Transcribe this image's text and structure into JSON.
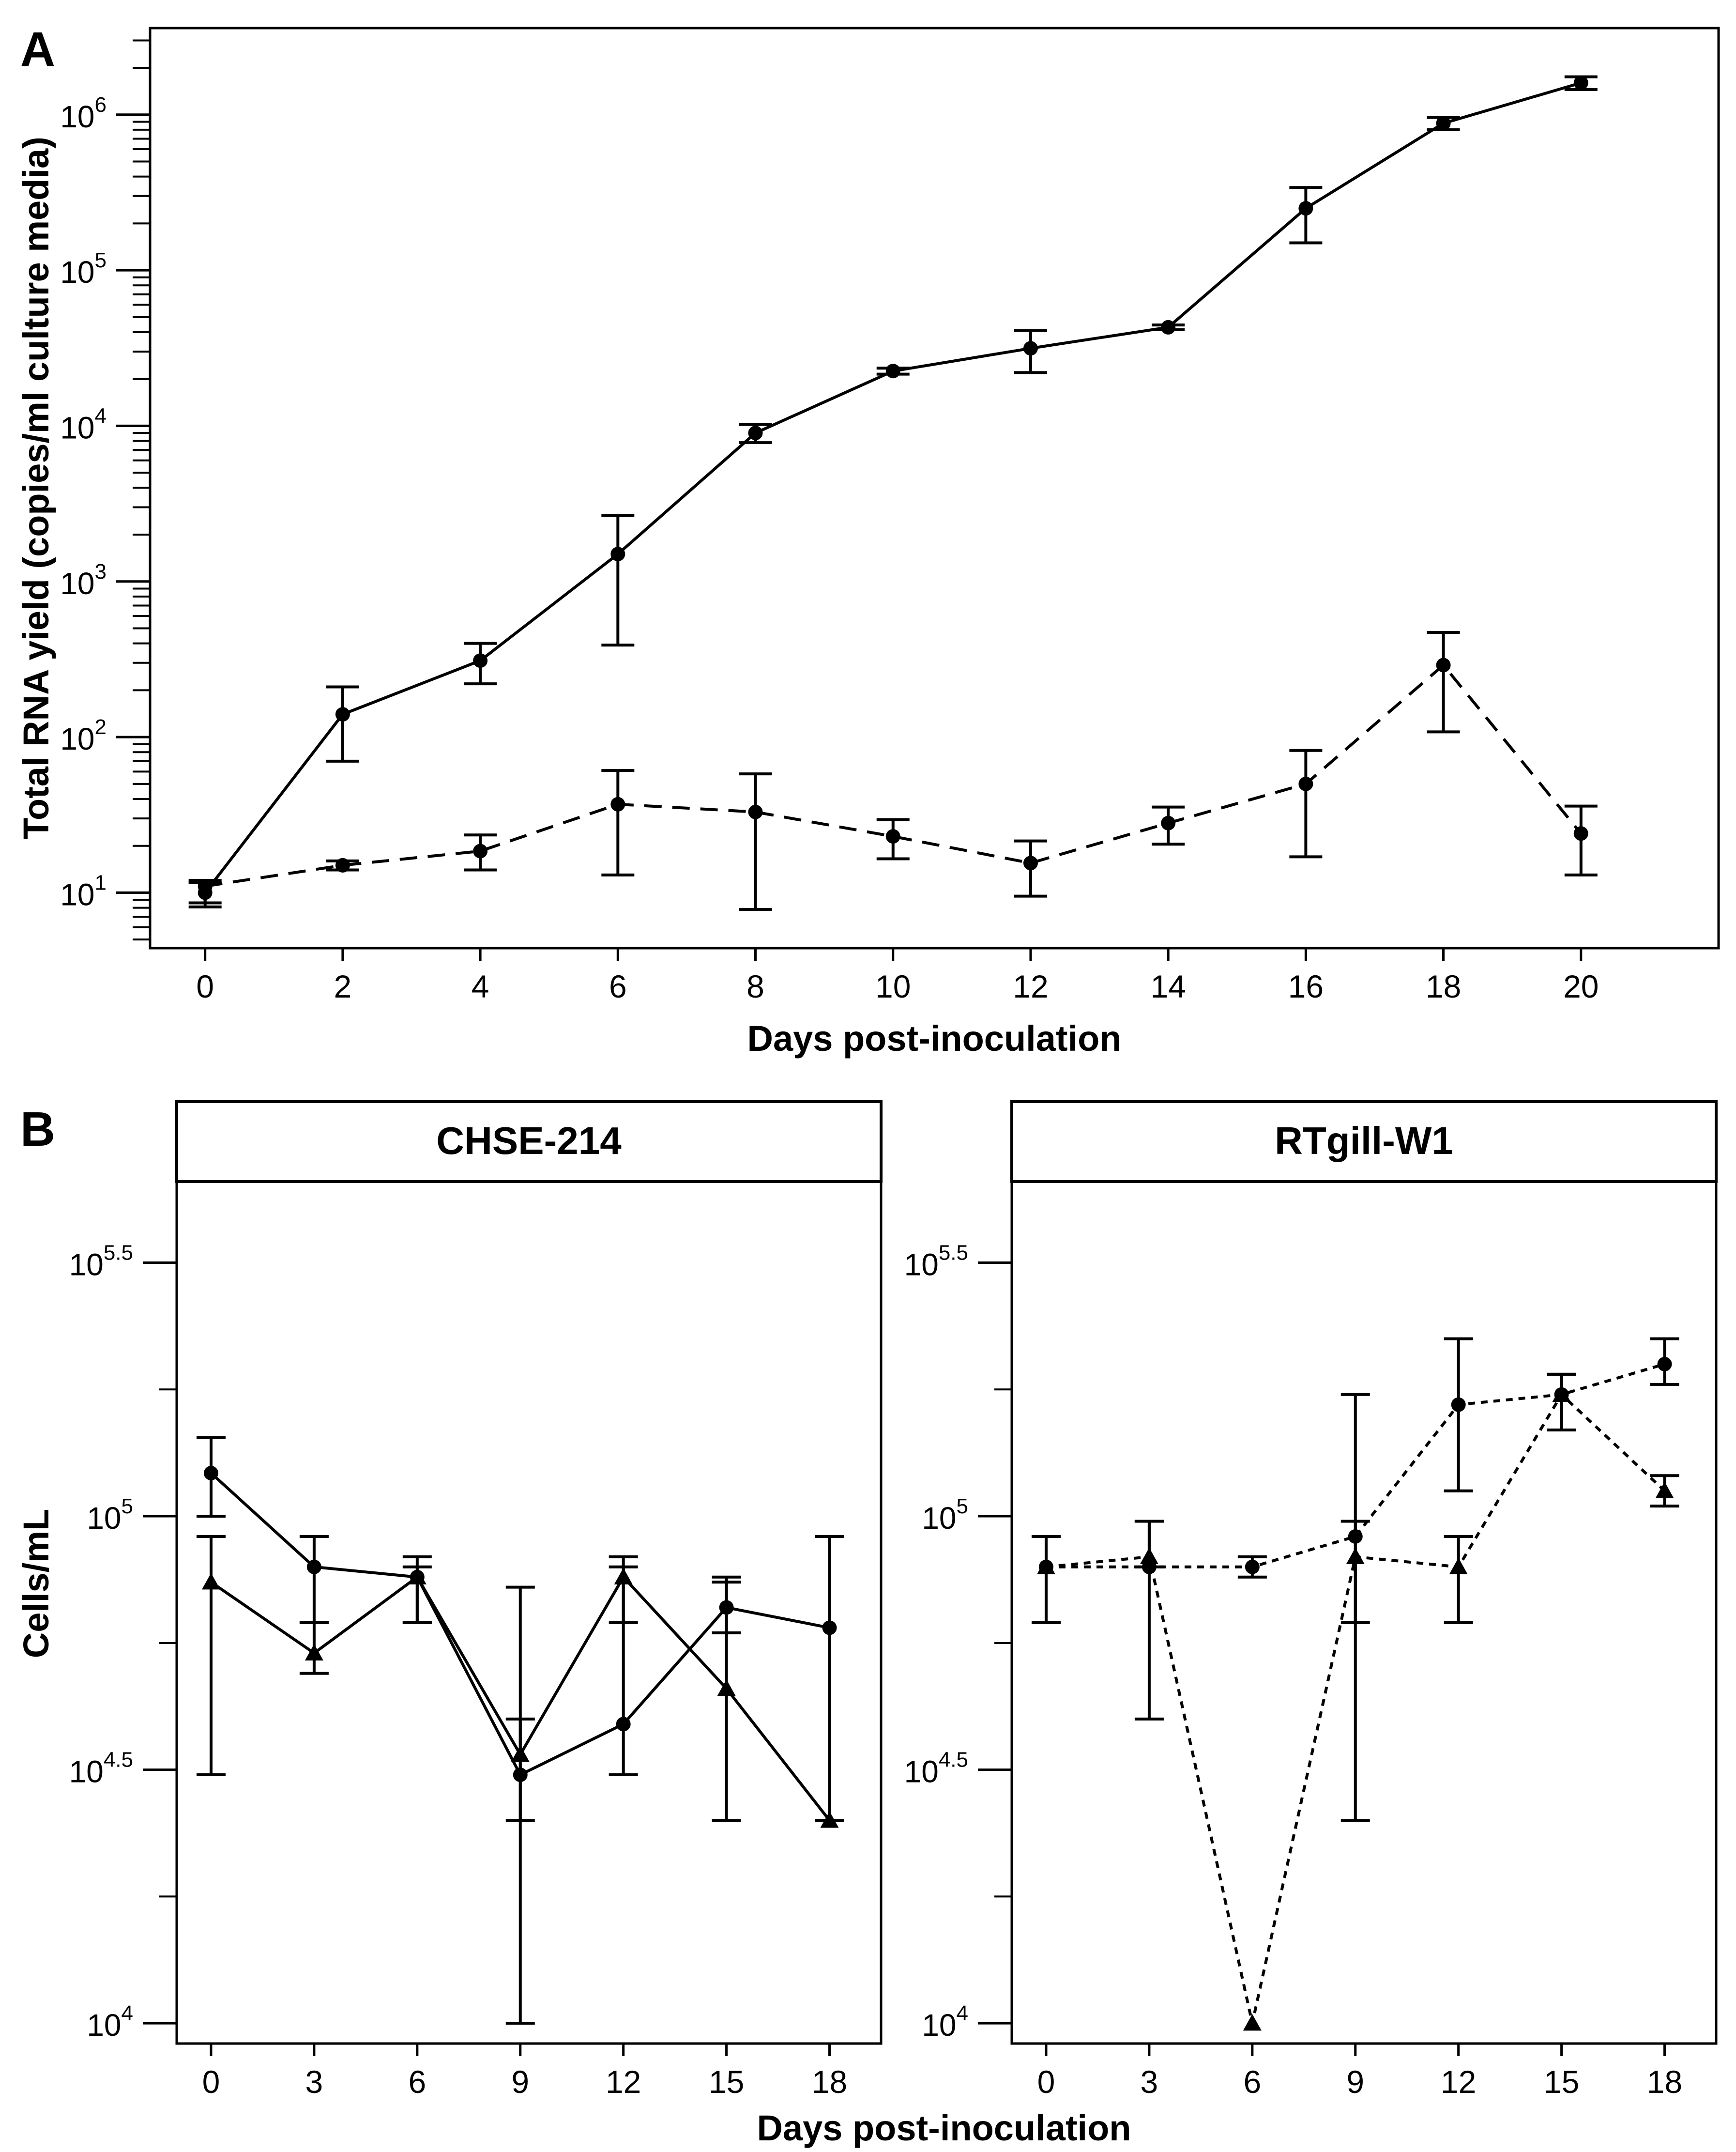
{
  "chart_data": [
    {
      "type": "line",
      "panel_label": "A",
      "title": "",
      "xlabel": "Days post-inoculation",
      "ylabel": "Total RNA yield (copies/ml culture media)",
      "yscale": "log10",
      "xlim": [
        -0.8,
        22
      ],
      "ylim": [
        4.4,
        3600000.0
      ],
      "xticks": [
        0,
        2,
        4,
        6,
        8,
        10,
        12,
        14,
        16,
        18,
        20
      ],
      "xtick_labels": [
        "0",
        "2",
        "4",
        "6",
        "8",
        "10",
        "12",
        "14",
        "16",
        "18",
        "20"
      ],
      "yticks_exp": [
        1,
        2,
        3,
        4,
        5,
        6
      ],
      "ytick_base": "10",
      "series": [
        {
          "name": "solid",
          "line_style": "solid",
          "marker": "circle",
          "x": [
            0,
            2,
            4,
            6,
            8,
            10,
            12,
            14,
            16,
            18,
            20
          ],
          "y": [
            10,
            140,
            310,
            1500,
            9000,
            22500,
            31500,
            43000,
            250000,
            880000,
            1600000
          ],
          "err_low": [
            8.6,
            70,
            220,
            390,
            7800,
            21500,
            22000,
            41500,
            150000,
            800000,
            1450000
          ],
          "err_high": [
            11.6,
            210,
            400,
            2650,
            10200,
            23500,
            41000,
            44500,
            340000,
            960000,
            1750000
          ]
        },
        {
          "name": "dashed",
          "line_style": "dashed",
          "marker": "circle",
          "x": [
            0,
            2,
            4,
            6,
            8,
            10,
            12,
            14,
            16,
            18,
            20
          ],
          "y": [
            11,
            15,
            18.5,
            37,
            33,
            23,
            15.5,
            28,
            50,
            290,
            24
          ],
          "err_low": [
            8.1,
            14,
            14,
            13,
            7.8,
            16.5,
            9.5,
            20.5,
            17,
            108,
            13
          ],
          "err_high": [
            12,
            16,
            23.5,
            61,
            58,
            29.5,
            21.5,
            35.5,
            82,
            470,
            36
          ]
        }
      ]
    },
    {
      "type": "line",
      "panel_label": "B",
      "facets": [
        "CHSE-214",
        "RTgill-W1"
      ],
      "xlabel": "Days post-inoculation",
      "ylabel": "Cells/mL",
      "yscale": "log10",
      "xlim": [
        -1,
        19.5
      ],
      "ylim": [
        3.96,
        5.66
      ],
      "xticks": [
        0,
        3,
        6,
        9,
        12,
        15,
        18
      ],
      "xtick_labels": [
        "0",
        "3",
        "6",
        "9",
        "12",
        "15",
        "18"
      ],
      "yticks_exp": [
        4,
        4.5,
        5,
        5.5
      ],
      "ytick_exp_labels": [
        "4",
        "4.5",
        "5",
        "5.5"
      ],
      "ytick_base": "10",
      "facet_data": [
        {
          "title": "CHSE-214",
          "series": [
            {
              "name": "circle",
              "line_style": "solid",
              "marker": "circle",
              "x": [
                0,
                3,
                6,
                9,
                12,
                15,
                18
              ],
              "y": [
                5.085,
                4.9,
                4.88,
                4.49,
                4.59,
                4.82,
                4.78
              ],
              "err_low": [
                5,
                4.79,
                4.79,
                4,
                4.49,
                4.77,
                4.4
              ],
              "err_high": [
                5.155,
                4.96,
                4.9,
                4.86,
                4.9,
                4.87,
                4.96
              ]
            },
            {
              "name": "triangle",
              "line_style": "solid",
              "marker": "triangle",
              "x": [
                0,
                3,
                6,
                9,
                12,
                15,
                18
              ],
              "y": [
                4.87,
                4.73,
                4.88,
                4.53,
                4.88,
                4.66,
                4.4
              ],
              "err_low": [
                4.49,
                4.69,
                4.79,
                4.4,
                4.79,
                4.4,
                4.4
              ],
              "err_high": [
                4.96,
                4.79,
                4.92,
                4.6,
                4.92,
                4.88,
                4.96
              ]
            }
          ]
        },
        {
          "title": "RTgill-W1",
          "series": [
            {
              "name": "circle",
              "line_style": "dotted",
              "marker": "circle",
              "x": [
                0,
                3,
                6,
                9,
                12,
                15,
                18
              ],
              "y": [
                4.9,
                4.9,
                4.9,
                4.96,
                5.22,
                5.24,
                5.3
              ],
              "err_low": [
                4.79,
                4.6,
                4.88,
                4.4,
                5.05,
                5.17,
                5.26
              ],
              "err_high": [
                4.96,
                4.99,
                4.92,
                5.24,
                5.35,
                5.28,
                5.35
              ]
            },
            {
              "name": "triangle",
              "line_style": "dotted",
              "marker": "triangle",
              "x": [
                0,
                3,
                6,
                9,
                12,
                15,
                18
              ],
              "y": [
                4.9,
                4.92,
                4.0,
                4.92,
                4.9,
                5.24,
                5.05
              ],
              "err_low": [
                4.79,
                4.9,
                4.0,
                4.79,
                4.79,
                5.17,
                5.02
              ],
              "err_high": [
                4.96,
                4.99,
                4.0,
                4.99,
                4.96,
                5.28,
                5.08
              ]
            }
          ]
        }
      ]
    }
  ]
}
